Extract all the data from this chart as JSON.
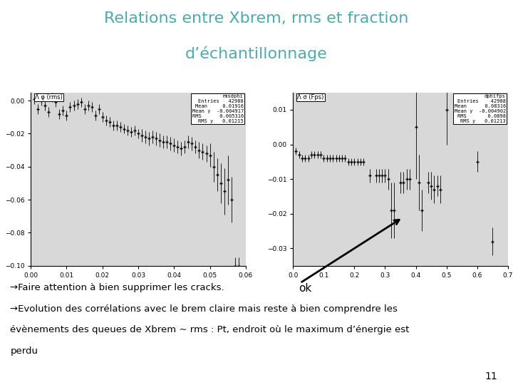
{
  "title_line1": "Relations entre Xbrem, rms et fraction",
  "title_line2": "d’échantillonnage",
  "title_color": "#4AACB0",
  "title_fontsize": 16,
  "background_color": "#ffffff",
  "slide_number": "11",
  "plot1": {
    "ylabel": "Λ φ (rms)",
    "xlim": [
      0,
      0.06
    ],
    "ylim": [
      -0.1,
      0.005
    ],
    "xticks": [
      0,
      0.01,
      0.02,
      0.03,
      0.04,
      0.05,
      0.06
    ],
    "yticks": [
      0,
      -0.02,
      -0.04,
      -0.06,
      -0.08,
      -0.1
    ],
    "bg_color": "#d8d8d8",
    "legend_title": "rmsdphi",
    "legend_entries": [
      "Entries   42988",
      "Mean     0.01916",
      "Mean y  -0.004917",
      "RMS      0.005316",
      "RMS y   0.01215"
    ],
    "x_points": [
      0.001,
      0.002,
      0.003,
      0.004,
      0.005,
      0.006,
      0.007,
      0.008,
      0.009,
      0.01,
      0.011,
      0.012,
      0.013,
      0.014,
      0.015,
      0.016,
      0.017,
      0.018,
      0.019,
      0.02,
      0.021,
      0.022,
      0.023,
      0.024,
      0.025,
      0.026,
      0.027,
      0.028,
      0.029,
      0.03,
      0.031,
      0.032,
      0.033,
      0.034,
      0.035,
      0.036,
      0.037,
      0.038,
      0.039,
      0.04,
      0.041,
      0.042,
      0.043,
      0.044,
      0.045,
      0.046,
      0.047,
      0.048,
      0.049,
      0.05,
      0.051,
      0.052,
      0.053,
      0.054,
      0.055,
      0.056,
      0.057,
      0.058
    ],
    "y_points": [
      0.001,
      -0.005,
      0.0,
      -0.003,
      -0.007,
      0.002,
      -0.001,
      -0.008,
      -0.006,
      -0.009,
      -0.004,
      -0.003,
      -0.002,
      -0.001,
      -0.005,
      -0.003,
      -0.004,
      -0.009,
      -0.005,
      -0.01,
      -0.012,
      -0.013,
      -0.015,
      -0.015,
      -0.016,
      -0.017,
      -0.018,
      -0.019,
      -0.018,
      -0.02,
      -0.021,
      -0.022,
      -0.023,
      -0.022,
      -0.023,
      -0.024,
      -0.025,
      -0.025,
      -0.026,
      -0.027,
      -0.028,
      -0.029,
      -0.028,
      -0.025,
      -0.026,
      -0.028,
      -0.03,
      -0.031,
      -0.032,
      -0.033,
      -0.04,
      -0.045,
      -0.05,
      -0.055,
      -0.048,
      -0.06,
      -0.1,
      -0.1
    ],
    "yerr": [
      0.003,
      0.003,
      0.003,
      0.003,
      0.003,
      0.003,
      0.003,
      0.003,
      0.003,
      0.003,
      0.003,
      0.003,
      0.003,
      0.003,
      0.003,
      0.003,
      0.003,
      0.003,
      0.003,
      0.003,
      0.003,
      0.003,
      0.003,
      0.003,
      0.003,
      0.003,
      0.003,
      0.003,
      0.003,
      0.003,
      0.004,
      0.004,
      0.004,
      0.004,
      0.004,
      0.004,
      0.004,
      0.004,
      0.004,
      0.004,
      0.004,
      0.004,
      0.004,
      0.004,
      0.004,
      0.004,
      0.005,
      0.005,
      0.005,
      0.007,
      0.009,
      0.01,
      0.012,
      0.014,
      0.015,
      0.014,
      0.005,
      0.005
    ]
  },
  "plot2": {
    "ylabel": "Λ σ (Fps)",
    "xlim": [
      0,
      0.7
    ],
    "ylim": [
      -0.035,
      0.015
    ],
    "xticks": [
      0,
      0.1,
      0.2,
      0.3,
      0.4,
      0.5,
      0.6,
      0.7
    ],
    "yticks": [
      0.01,
      0,
      -0.01,
      -0.02,
      -0.03
    ],
    "bg_color": "#d8d8d8",
    "legend_title": "dphifps",
    "legend_entries": [
      "Entries    42988",
      "Mean      0.08316",
      "Mean y  -0.004902",
      "RMS       0.0898",
      "RMS y   0.01213"
    ],
    "x_points": [
      0.01,
      0.02,
      0.03,
      0.04,
      0.05,
      0.06,
      0.07,
      0.08,
      0.09,
      0.1,
      0.11,
      0.12,
      0.13,
      0.14,
      0.15,
      0.16,
      0.17,
      0.18,
      0.19,
      0.2,
      0.21,
      0.22,
      0.23,
      0.25,
      0.27,
      0.28,
      0.29,
      0.3,
      0.31,
      0.32,
      0.33,
      0.35,
      0.36,
      0.37,
      0.38,
      0.4,
      0.41,
      0.42,
      0.44,
      0.45,
      0.46,
      0.47,
      0.48,
      0.5,
      0.6,
      0.65
    ],
    "y_points": [
      -0.002,
      -0.003,
      -0.004,
      -0.004,
      -0.004,
      -0.003,
      -0.003,
      -0.003,
      -0.003,
      -0.004,
      -0.004,
      -0.004,
      -0.004,
      -0.004,
      -0.004,
      -0.004,
      -0.004,
      -0.005,
      -0.005,
      -0.005,
      -0.005,
      -0.005,
      -0.005,
      -0.009,
      -0.009,
      -0.009,
      -0.009,
      -0.009,
      -0.01,
      -0.019,
      -0.019,
      -0.011,
      -0.011,
      -0.01,
      -0.01,
      0.005,
      -0.011,
      -0.019,
      -0.011,
      -0.012,
      -0.013,
      -0.012,
      -0.013,
      0.01,
      -0.005,
      -0.028
    ],
    "yerr": [
      0.001,
      0.001,
      0.001,
      0.001,
      0.001,
      0.001,
      0.001,
      0.001,
      0.001,
      0.001,
      0.001,
      0.001,
      0.001,
      0.001,
      0.001,
      0.001,
      0.001,
      0.001,
      0.001,
      0.001,
      0.001,
      0.001,
      0.001,
      0.002,
      0.002,
      0.002,
      0.002,
      0.002,
      0.003,
      0.008,
      0.008,
      0.003,
      0.003,
      0.003,
      0.003,
      0.015,
      0.008,
      0.006,
      0.003,
      0.004,
      0.004,
      0.003,
      0.004,
      0.01,
      0.003,
      0.004
    ]
  },
  "body_text": [
    "→Faire attention à bien supprimer les cracks.",
    "→Evolution des corrélations avec le brem claire mais reste à bien comprendre les",
    "évènements des queues de Xbrem ~ rms : Pt, endroit où le maximum d’énergie est",
    "perdu"
  ],
  "body_fontsize": 9.5
}
